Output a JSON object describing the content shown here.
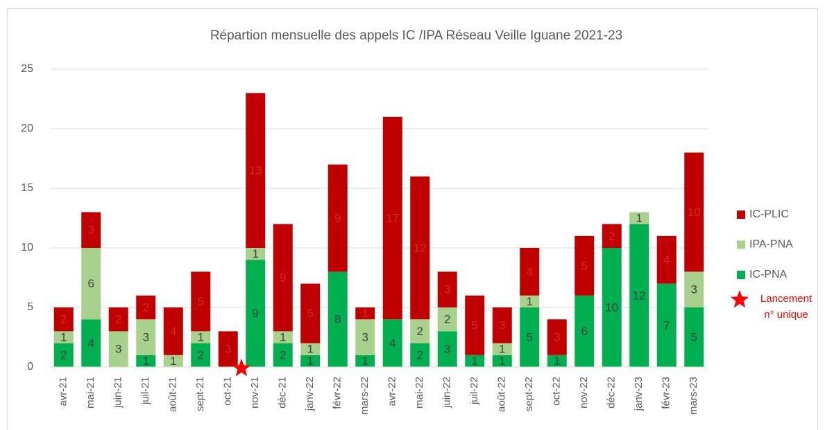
{
  "chart_data": {
    "type": "stacked_bar",
    "title": "Répartion mensuelle des appels IC /IPA Réseau Veille Iguane 2021-23",
    "categories": [
      "avr-21",
      "mai-21",
      "juin-21",
      "juil-21",
      "août-21",
      "sept-21",
      "oct-21",
      "nov-21",
      "déc-21",
      "janv-22",
      "févr-22",
      "mars-22",
      "avr-22",
      "mai-22",
      "juin-22",
      "juil-22",
      "août-22",
      "sept-22",
      "oct-22",
      "nov-22",
      "déc-22",
      "janv-23",
      "févr-23",
      "mars-23"
    ],
    "series": [
      {
        "name": "IC-PNA",
        "color": "#00b050",
        "label_color": "#404040",
        "values": [
          2,
          4,
          0,
          1,
          0,
          2,
          0,
          9,
          2,
          1,
          8,
          1,
          4,
          2,
          3,
          1,
          1,
          5,
          1,
          6,
          10,
          12,
          7,
          5
        ]
      },
      {
        "name": "IPA-PNA",
        "color": "#a9d18e",
        "label_color": "#404040",
        "values": [
          1,
          6,
          3,
          3,
          1,
          1,
          0,
          1,
          1,
          1,
          0,
          3,
          0,
          2,
          2,
          0,
          1,
          1,
          0,
          0,
          0,
          1,
          0,
          3
        ]
      },
      {
        "name": "IC-PLIC",
        "color": "#c00000",
        "label_color": "#d42a2a",
        "values": [
          2,
          3,
          2,
          2,
          4,
          5,
          3,
          13,
          9,
          5,
          9,
          1,
          17,
          12,
          3,
          5,
          3,
          4,
          3,
          5,
          2,
          0,
          4,
          10
        ]
      }
    ],
    "ylim": [
      0,
      25
    ],
    "yticks": [
      0,
      5,
      10,
      15,
      20,
      25
    ],
    "grid": true,
    "legend": "right",
    "annotation": {
      "lines": [
        "Lancement",
        "n° unique"
      ],
      "color": "#ff0000"
    }
  }
}
